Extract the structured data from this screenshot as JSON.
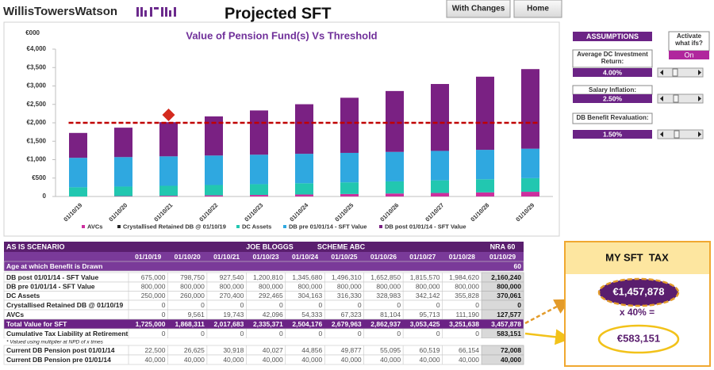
{
  "header": {
    "logo": "WillisTowersWatson",
    "title": "Projected SFT",
    "buttons": [
      "With Changes",
      "Home"
    ]
  },
  "chart_data": {
    "type": "bar",
    "stacked": true,
    "title": "Value of Pension Fund(s) Vs Threshold",
    "y_unit": "€000",
    "categories": [
      "01/10/19",
      "01/10/20",
      "01/10/21",
      "01/10/22",
      "01/10/23",
      "01/10/24",
      "01/10/25",
      "01/10/26",
      "01/10/27",
      "01/10/28",
      "01/10/29"
    ],
    "series": [
      {
        "name": "AVCs",
        "color": "#cc2f9e",
        "values": [
          0,
          9.561,
          19.743,
          31,
          42.096,
          54.333,
          67.323,
          81.104,
          95.713,
          111.19,
          127.577
        ]
      },
      {
        "name": "Crystallised Retained DB @ 01/10/19",
        "color": "#262626",
        "values": [
          0,
          0,
          0,
          0,
          0,
          0,
          0,
          0,
          0,
          0,
          0
        ]
      },
      {
        "name": "DC Assets",
        "color": "#22c7b0",
        "values": [
          250,
          260,
          270.4,
          281,
          292.465,
          304.163,
          316.33,
          328.983,
          342.142,
          355.828,
          370.061
        ]
      },
      {
        "name": "DB pre 01/01/14 - SFT Value",
        "color": "#2fa8e0",
        "values": [
          800,
          800,
          800,
          800,
          800,
          800,
          800,
          800,
          800,
          800,
          800
        ]
      },
      {
        "name": "DB post 01/01/14 - SFT Value",
        "color": "#7a2183",
        "values": [
          675,
          798.75,
          927.54,
          1062,
          1200.81,
          1345.68,
          1496.31,
          1652.85,
          1815.57,
          1984.62,
          2160.24
        ]
      }
    ],
    "threshold": {
      "value": 2000,
      "color": "#c00000"
    },
    "marker": {
      "x": "01/10/21",
      "value": 2215,
      "color": "#d42a1e"
    },
    "ylim": [
      0,
      4000
    ],
    "yticks": [
      0,
      {
        "value": 500,
        "label": "€500"
      },
      {
        "value": 1000,
        "label": "€1,000"
      },
      {
        "value": 1500,
        "label": "€1,500"
      },
      {
        "value": 2000,
        "label": "€2,000"
      },
      {
        "value": 2500,
        "label": "€2,500"
      },
      {
        "value": 3000,
        "label": "€3,000"
      },
      {
        "value": 3500,
        "label": "€3,500"
      },
      {
        "value": 4000,
        "label": "€4,000"
      }
    ],
    "grid": false
  },
  "assumptions": {
    "title": "ASSUMPTIONS",
    "activate_label": "Activate what ifs?",
    "activate_value": "On",
    "items": [
      {
        "label": "Average DC Investment Return:",
        "value": "4.00%"
      },
      {
        "label": "Salary Inflation:",
        "value": "2.50%"
      },
      {
        "label": "DB Benefit Revaluation:",
        "value": "1.50%"
      }
    ]
  },
  "table": {
    "scenario": "AS IS SCENARIO",
    "member": "JOE BLOGGS",
    "scheme": "SCHEME ABC",
    "nra": "NRA 60",
    "columns": [
      "01/10/19",
      "01/10/20",
      "01/10/21",
      "01/10/23",
      "01/10/24",
      "01/10/25",
      "01/10/26",
      "01/10/27",
      "01/10/28",
      "01/10/29"
    ],
    "rows": [
      {
        "label": "Age at which Benefit is Drawn",
        "cells": [
          null,
          null,
          null,
          null,
          null,
          null,
          null,
          null,
          null,
          "60"
        ]
      },
      {
        "label": "DB post 01/01/14 - SFT Value",
        "cells": [
          "675,000",
          "798,750",
          "927,540",
          "1,200,810",
          "1,345,680",
          "1,496,310",
          "1,652,850",
          "1,815,570",
          "1,984,620",
          "2,160,240"
        ]
      },
      {
        "label": "DB pre 01/01/14 - SFT Value",
        "cells": [
          "800,000",
          "800,000",
          "800,000",
          "800,000",
          "800,000",
          "800,000",
          "800,000",
          "800,000",
          "800,000",
          "800,000"
        ]
      },
      {
        "label": "DC Assets",
        "cells": [
          "250,000",
          "260,000",
          "270,400",
          "292,465",
          "304,163",
          "316,330",
          "328,983",
          "342,142",
          "355,828",
          "370,061"
        ]
      },
      {
        "label": "Crystallised Retained DB @ 01/10/19",
        "cells": [
          "0",
          "0",
          "0",
          "0",
          "0",
          "0",
          "0",
          "0",
          "0",
          "0"
        ]
      },
      {
        "label": "AVCs",
        "cells": [
          "0",
          "9,561",
          "19,743",
          "42,096",
          "54,333",
          "67,323",
          "81,104",
          "95,713",
          "111,190",
          "127,577"
        ]
      },
      {
        "label": "Total Value for SFT",
        "cells": [
          "1,725,000",
          "1,868,311",
          "2,017,683",
          "2,335,371",
          "2,504,176",
          "2,679,963",
          "2,862,937",
          "3,053,425",
          "3,251,638",
          "3,457,878"
        ]
      },
      {
        "label": "Cumulative Tax Liability at Retirement",
        "cells": [
          "0",
          "0",
          "0",
          "0",
          "0",
          "0",
          "0",
          "0",
          "0",
          "583,151"
        ]
      },
      {
        "label": "* Valued using multiplier at NPD of x times",
        "cells": []
      },
      {
        "label": "Current DB Pension post 01/01/14",
        "cells": [
          "22,500",
          "26,625",
          "30,918",
          "40,027",
          "44,856",
          "49,877",
          "55,095",
          "60,519",
          "66,154",
          "72,008"
        ]
      },
      {
        "label": "Current DB Pension pre 01/01/14",
        "cells": [
          "40,000",
          "40,000",
          "40,000",
          "40,000",
          "40,000",
          "40,000",
          "40,000",
          "40,000",
          "40,000",
          "40,000"
        ]
      }
    ]
  },
  "tax_box": {
    "title": "MY SFT  TAX",
    "amount": "€1,457,878",
    "rate": "x 40% =",
    "tax": "€583,151"
  }
}
